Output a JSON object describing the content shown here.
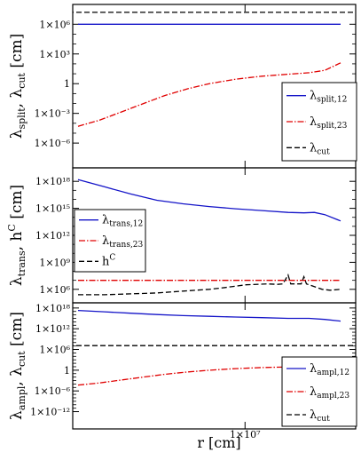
{
  "chart_data": [
    {
      "type": "line",
      "ylabel": "λsplit, λcut [cm]",
      "ylabel_parts": {
        "base": "λ",
        "sub1": "split",
        "mid": ", λ",
        "sub2": "cut",
        "tail": " [cm]"
      },
      "yscale": "log",
      "ylim_exp": [
        -8.5,
        8
      ],
      "yticks": [
        {
          "exp": 6,
          "label": "1×10⁶"
        },
        {
          "exp": 3,
          "label": "1×10³"
        },
        {
          "exp": 0,
          "label": "1"
        },
        {
          "exp": -3,
          "label": "1×10⁻³"
        },
        {
          "exp": -6,
          "label": "1×10⁻⁶"
        }
      ],
      "legend": {
        "position": "bottom-right",
        "entries": [
          {
            "base": "λ",
            "sub": "split,12",
            "color": "#1414c8",
            "dash": ""
          },
          {
            "base": "λ",
            "sub": "split,23",
            "color": "#e00000",
            "dash": "7,2,1.5,2"
          },
          {
            "base": "λ",
            "sub": "cut",
            "color": "#000000",
            "dash": "6,3"
          }
        ]
      },
      "series": [
        {
          "color": "#1414c8",
          "dash": "",
          "points": [
            [
              0,
              6
            ],
            [
              1,
              6
            ]
          ]
        },
        {
          "color": "#e00000",
          "dash": "7,2,1.5,2",
          "points": [
            [
              0,
              -4.3
            ],
            [
              0.08,
              -3.7
            ],
            [
              0.16,
              -2.9
            ],
            [
              0.25,
              -2.0
            ],
            [
              0.33,
              -1.2
            ],
            [
              0.42,
              -0.5
            ],
            [
              0.5,
              0
            ],
            [
              0.6,
              0.45
            ],
            [
              0.7,
              0.75
            ],
            [
              0.8,
              0.95
            ],
            [
              0.88,
              1.1
            ],
            [
              0.94,
              1.35
            ],
            [
              1,
              2.1
            ]
          ]
        },
        {
          "color": "#000000",
          "dash": "6,3",
          "points": [
            [
              -0.25,
              7.2
            ],
            [
              1.2,
              7.2
            ]
          ]
        }
      ]
    },
    {
      "type": "line",
      "ylabel": "λtrans, hC [cm]",
      "ylabel_parts": {
        "base": "λ",
        "sub1": "trans",
        "mid": ", h",
        "sup": "C",
        "tail": " [cm]"
      },
      "yscale": "log",
      "ylim_exp": [
        4.5,
        19.5
      ],
      "yticks": [
        {
          "exp": 18,
          "label": "1×10¹⁸"
        },
        {
          "exp": 15,
          "label": "1×10¹⁵"
        },
        {
          "exp": 12,
          "label": "1×10¹²"
        },
        {
          "exp": 9,
          "label": "1×10⁹"
        },
        {
          "exp": 6,
          "label": "1×10⁶"
        }
      ],
      "legend": {
        "position": "center-left",
        "entries": [
          {
            "base": "λ",
            "sub": "trans,12",
            "color": "#1414c8",
            "dash": ""
          },
          {
            "base": "λ",
            "sub": "trans,23",
            "color": "#e00000",
            "dash": "7,2,1.5,2"
          },
          {
            "base": "h",
            "sup": "C",
            "color": "#000000",
            "dash": "6,3"
          }
        ]
      },
      "series": [
        {
          "color": "#1414c8",
          "dash": "",
          "points": [
            [
              0,
              18.2
            ],
            [
              0.1,
              17.4
            ],
            [
              0.2,
              16.6
            ],
            [
              0.3,
              15.9
            ],
            [
              0.4,
              15.5
            ],
            [
              0.5,
              15.2
            ],
            [
              0.6,
              14.95
            ],
            [
              0.7,
              14.75
            ],
            [
              0.8,
              14.55
            ],
            [
              0.86,
              14.5
            ],
            [
              0.9,
              14.55
            ],
            [
              0.94,
              14.3
            ],
            [
              1,
              13.6
            ]
          ]
        },
        {
          "color": "#e00000",
          "dash": "7,2,1.5,2",
          "points": [
            [
              0,
              7.0
            ],
            [
              1,
              7.0
            ]
          ]
        },
        {
          "color": "#000000",
          "dash": "6,3",
          "points": [
            [
              0,
              5.4
            ],
            [
              0.1,
              5.4
            ],
            [
              0.2,
              5.5
            ],
            [
              0.3,
              5.6
            ],
            [
              0.4,
              5.8
            ],
            [
              0.5,
              6.0
            ],
            [
              0.56,
              6.2
            ],
            [
              0.64,
              6.5
            ],
            [
              0.72,
              6.6
            ],
            [
              0.76,
              6.55
            ],
            [
              0.78,
              6.6
            ],
            [
              0.8,
              7.6
            ],
            [
              0.81,
              6.6
            ],
            [
              0.85,
              6.6
            ],
            [
              0.86,
              7.4
            ],
            [
              0.87,
              6.6
            ],
            [
              0.93,
              6.0
            ],
            [
              0.96,
              5.9
            ],
            [
              1,
              6.0
            ]
          ]
        }
      ]
    },
    {
      "type": "line",
      "ylabel": "λampl, λcut [cm]",
      "ylabel_parts": {
        "base": "λ",
        "sub1": "ampl",
        "mid": ", λ",
        "sub2": "cut",
        "tail": " [cm]"
      },
      "yscale": "log",
      "ylim_exp": [
        -17,
        19.5
      ],
      "yticks": [
        {
          "exp": 18,
          "label": "1×10¹⁸"
        },
        {
          "exp": 12,
          "label": "1×10¹²"
        },
        {
          "exp": 6,
          "label": "1×10⁶"
        },
        {
          "exp": 0,
          "label": "1"
        },
        {
          "exp": -6,
          "label": "1×10⁻⁶"
        },
        {
          "exp": -12,
          "label": "1×10⁻¹²"
        }
      ],
      "legend": {
        "position": "bottom-right",
        "entries": [
          {
            "base": "λ",
            "sub": "ampl,12",
            "color": "#1414c8",
            "dash": ""
          },
          {
            "base": "λ",
            "sub": "ampl,23",
            "color": "#e00000",
            "dash": "7,2,1.5,2"
          },
          {
            "base": "λ",
            "sub": "cut",
            "color": "#000000",
            "dash": "6,3"
          }
        ]
      },
      "series": [
        {
          "color": "#1414c8",
          "dash": "",
          "points": [
            [
              0,
              17.3
            ],
            [
              0.1,
              16.9
            ],
            [
              0.2,
              16.5
            ],
            [
              0.3,
              16.1
            ],
            [
              0.4,
              15.8
            ],
            [
              0.5,
              15.6
            ],
            [
              0.6,
              15.4
            ],
            [
              0.7,
              15.2
            ],
            [
              0.8,
              15.0
            ],
            [
              0.88,
              15.0
            ],
            [
              0.94,
              14.7
            ],
            [
              1,
              14.2
            ]
          ]
        },
        {
          "color": "#e00000",
          "dash": "7,2,1.5,2",
          "points": [
            [
              0,
              -4.3
            ],
            [
              0.08,
              -3.7
            ],
            [
              0.16,
              -2.9
            ],
            [
              0.25,
              -2.0
            ],
            [
              0.33,
              -1.2
            ],
            [
              0.42,
              -0.5
            ],
            [
              0.5,
              0
            ],
            [
              0.6,
              0.45
            ],
            [
              0.7,
              0.75
            ],
            [
              0.8,
              0.95
            ],
            [
              0.88,
              1.1
            ],
            [
              0.94,
              1.35
            ],
            [
              1,
              2.1
            ]
          ]
        },
        {
          "color": "#000000",
          "dash": "6,3",
          "points": [
            [
              -0.25,
              7.1
            ],
            [
              1.2,
              7.1
            ]
          ]
        }
      ]
    }
  ],
  "x_axis": {
    "label": "r [cm]",
    "scale": "log",
    "tick_label": "1×10⁷",
    "tick_frac": 0.636
  }
}
